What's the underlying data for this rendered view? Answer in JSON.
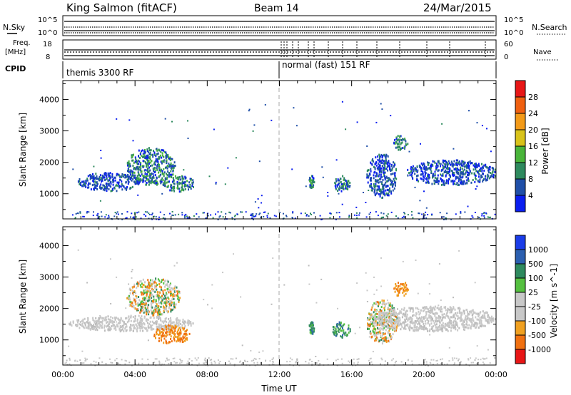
{
  "header": {
    "station": "King Salmon (fitACF)",
    "beam": "Beam 14",
    "date": "24/Mar/2015"
  },
  "strip_labels": {
    "nsky": "N.Sky",
    "nsearch": "N.Search",
    "nsky_top": "10^5",
    "nsky_bottom": "10^0",
    "freq": "Freq.",
    "freq_unit": "[MHz]",
    "freq_top": "18",
    "freq_bottom": "8",
    "nave": "Nave",
    "nave_top": "60",
    "nave_bottom": "0",
    "cpid": "CPID"
  },
  "cpid_modes": [
    {
      "label": "themis 3300 RF",
      "start_hour": 0
    },
    {
      "label": "normal (fast) 151 RF",
      "start_hour": 12
    }
  ],
  "chart_data": [
    {
      "type": "heatmap",
      "name": "power",
      "ylabel": "Slant Range [km]",
      "xlim": [
        0,
        24
      ],
      "ylim": [
        200,
        4600
      ],
      "yticks": [
        1000,
        2000,
        3000,
        4000
      ],
      "colorbar": {
        "label": "Power [dB]",
        "ticks": [
          "4",
          "8",
          "12",
          "16",
          "20",
          "24",
          "28"
        ],
        "colors": [
          "#0a1ef0",
          "#1f4fa8",
          "#2e8a5e",
          "#49b53a",
          "#d9c31a",
          "#f39a18",
          "#f06010",
          "#e81616"
        ]
      },
      "echo_regions": [
        {
          "t0": 0.8,
          "t1": 4.2,
          "r0": 1100,
          "r1": 1700,
          "level": "low"
        },
        {
          "t0": 3.5,
          "t1": 6.2,
          "r0": 1300,
          "r1": 2500,
          "level": "mid"
        },
        {
          "t0": 5.5,
          "t1": 7.3,
          "r0": 1100,
          "r1": 1600,
          "level": "mid"
        },
        {
          "t0": 13.6,
          "t1": 13.9,
          "r0": 1200,
          "r1": 1600,
          "level": "mid"
        },
        {
          "t0": 14.9,
          "t1": 15.9,
          "r0": 1100,
          "r1": 1600,
          "level": "mid"
        },
        {
          "t0": 16.8,
          "t1": 18.5,
          "r0": 900,
          "r1": 2300,
          "level": "low"
        },
        {
          "t0": 18.3,
          "t1": 19.1,
          "r0": 2400,
          "r1": 2900,
          "level": "mid"
        },
        {
          "t0": 19.0,
          "t1": 24.0,
          "r0": 1300,
          "r1": 2100,
          "level": "low"
        }
      ]
    },
    {
      "type": "heatmap",
      "name": "velocity",
      "ylabel": "Slant Range [km]",
      "xlabel": "Time UT",
      "xlim": [
        0,
        24
      ],
      "ylim": [
        200,
        4600
      ],
      "yticks": [
        1000,
        2000,
        3000,
        4000
      ],
      "xticks": [
        "00:00",
        "04:00",
        "08:00",
        "12:00",
        "16:00",
        "20:00",
        "00:00"
      ],
      "colorbar": {
        "label": "Velocity [m s^-1]",
        "ticks": [
          "1000",
          "500",
          "100",
          "25",
          "-25",
          "-100",
          "-500",
          "-1000"
        ],
        "colors": [
          "#1a3ce8",
          "#2b5fb0",
          "#2e8a5e",
          "#55c040",
          "#c8c8c8",
          "#c8c8c8",
          "#f0a020",
          "#f07010",
          "#e81616"
        ]
      },
      "echo_regions": [
        {
          "t0": 0.3,
          "t1": 7.3,
          "r0": 1300,
          "r1": 1800,
          "level": "ground"
        },
        {
          "t0": 5.0,
          "t1": 7.0,
          "r0": 900,
          "r1": 1500,
          "level": "neg"
        },
        {
          "t0": 3.5,
          "t1": 6.5,
          "r0": 1800,
          "r1": 3000,
          "level": "mix"
        },
        {
          "t0": 13.6,
          "t1": 13.9,
          "r0": 1200,
          "r1": 1600,
          "level": "pos"
        },
        {
          "t0": 14.9,
          "t1": 15.9,
          "r0": 1100,
          "r1": 1600,
          "level": "pos"
        },
        {
          "t0": 16.8,
          "t1": 18.5,
          "r0": 900,
          "r1": 2300,
          "level": "mix"
        },
        {
          "t0": 18.3,
          "t1": 19.1,
          "r0": 2400,
          "r1": 2900,
          "level": "neg"
        },
        {
          "t0": 17.0,
          "t1": 24.0,
          "r0": 1300,
          "r1": 2100,
          "level": "ground"
        }
      ]
    }
  ]
}
